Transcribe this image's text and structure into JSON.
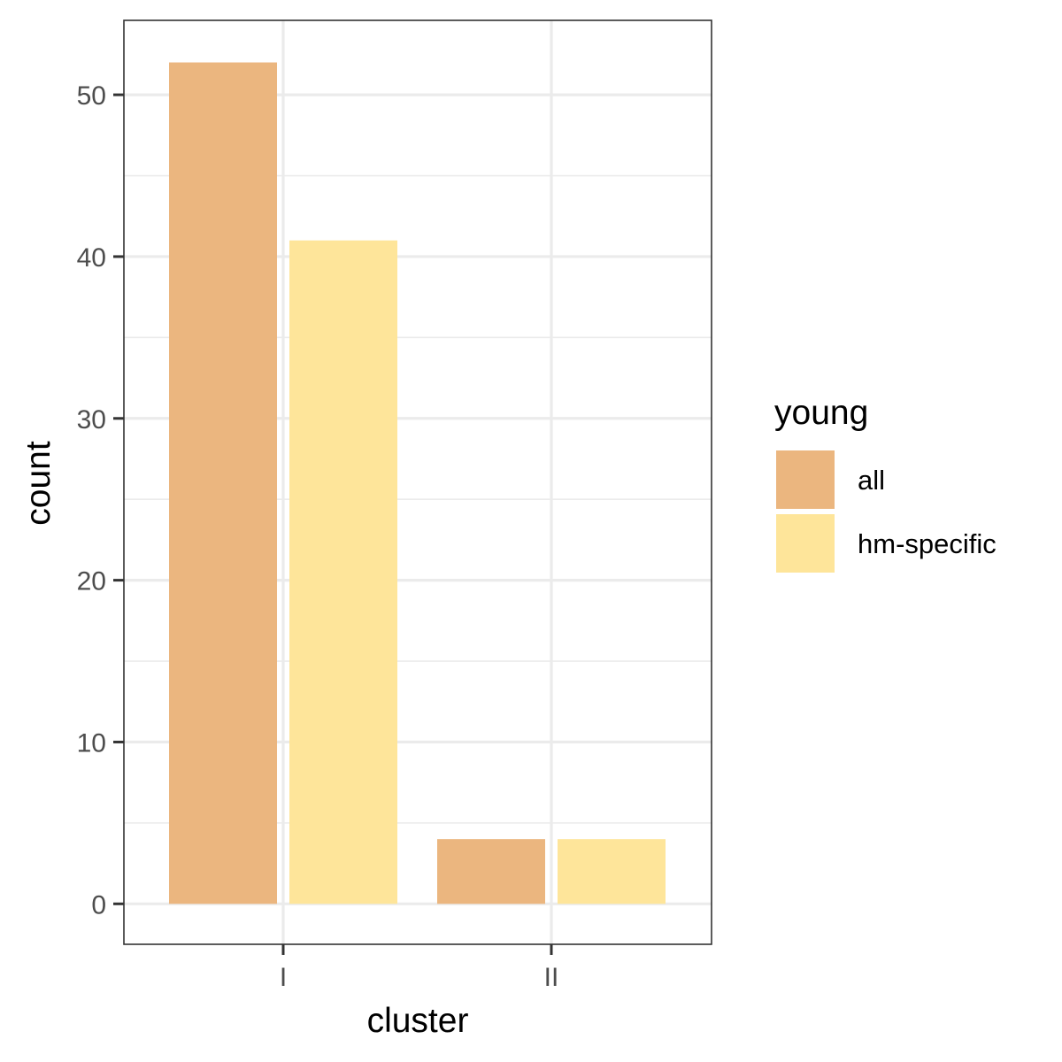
{
  "chart_data": {
    "type": "bar",
    "categories": [
      "I",
      "II"
    ],
    "series": [
      {
        "name": "all",
        "values": [
          52,
          4
        ],
        "color": "#EBB67F"
      },
      {
        "name": "hm-specific",
        "values": [
          41,
          4
        ],
        "color": "#FEE59A"
      }
    ],
    "xlabel": "cluster",
    "ylabel": "count",
    "ylim": [
      -2.5,
      54.6
    ],
    "yticks": [
      0,
      10,
      20,
      30,
      40,
      50
    ],
    "grid": true,
    "legend": {
      "title": "young",
      "position": "right"
    }
  }
}
